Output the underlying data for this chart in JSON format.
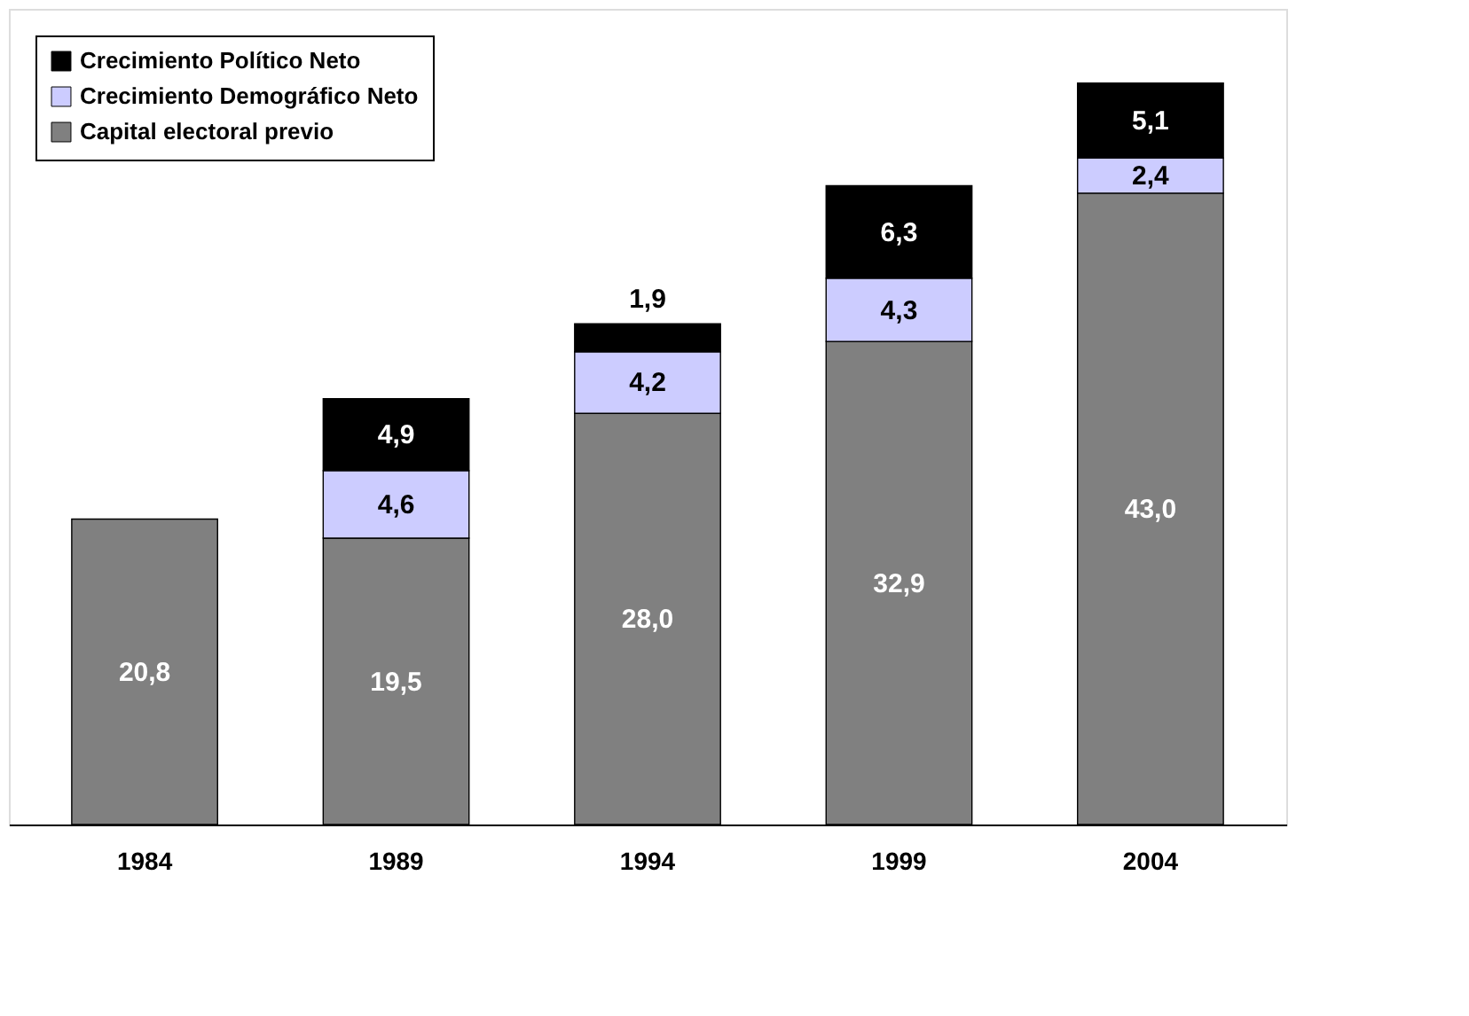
{
  "chart_data": {
    "type": "bar",
    "stacked": true,
    "categories": [
      "1984",
      "1989",
      "1994",
      "1999",
      "2004"
    ],
    "series": [
      {
        "name": "Capital electoral previo",
        "color": "#808080",
        "values": [
          20.8,
          19.5,
          28.0,
          32.9,
          43.0
        ],
        "value_labels": [
          "20,8",
          "19,5",
          "28,0",
          "32,9",
          "43,0"
        ]
      },
      {
        "name": "Crecimiento Demográfico Neto",
        "color": "#ccccff",
        "values": [
          null,
          4.6,
          4.2,
          4.3,
          2.4
        ],
        "value_labels": [
          null,
          "4,6",
          "4,2",
          "4,3",
          "2,4"
        ]
      },
      {
        "name": "Crecimiento Político Neto",
        "color": "#000000",
        "values": [
          null,
          4.9,
          1.9,
          6.3,
          5.1
        ],
        "value_labels": [
          null,
          "4,9",
          "1,9",
          "6,3",
          "5,1"
        ]
      }
    ],
    "legend": "top left",
    "grid": false,
    "tick_labels": "x"
  }
}
